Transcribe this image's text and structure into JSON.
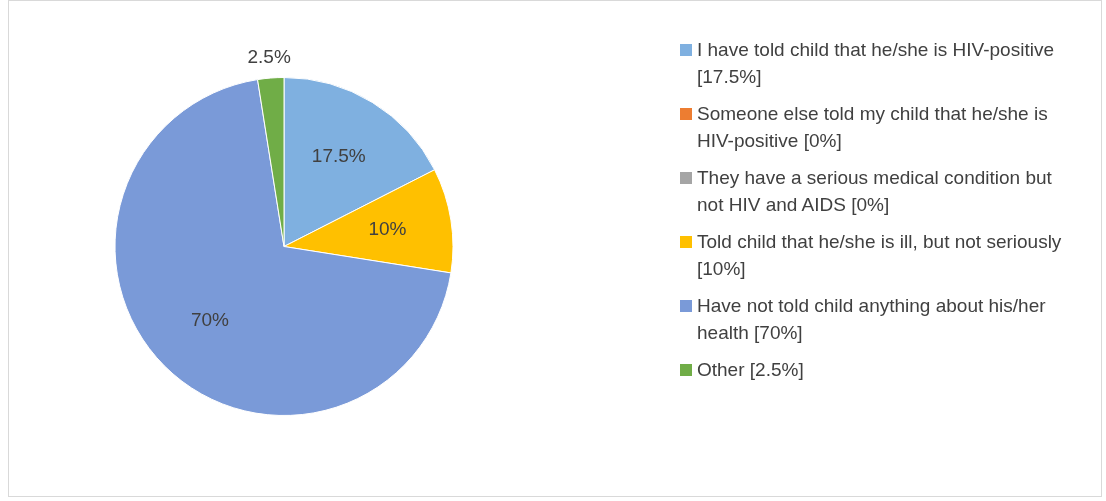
{
  "chart_data": {
    "type": "pie",
    "categories": [
      "I have told child that he/she is HIV-positive [17.5%]",
      "Someone else told my child that he/she is HIV-positive [0%]",
      "They have a serious medical condition but not HIV and AIDS [0%]",
      "Told child that he/she is ill, but not seriously [10%]",
      "Have not told child anything about his/her health [70%]",
      "Other [2.5%]"
    ],
    "values": [
      17.5,
      0,
      0,
      10,
      70,
      2.5
    ],
    "colors": [
      "#7fb0e0",
      "#ed7d31",
      "#a5a5a5",
      "#ffc000",
      "#7a9ad8",
      "#70ad47"
    ],
    "value_labels": [
      "17.5%",
      null,
      null,
      "10%",
      "70%",
      "2.5%"
    ],
    "legend": "right"
  }
}
